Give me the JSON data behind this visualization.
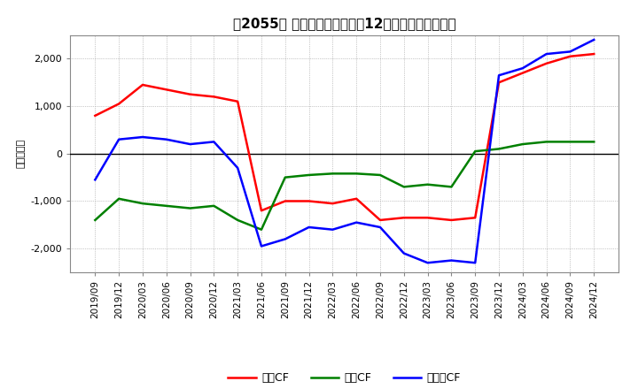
{
  "title": "【2055】 キャッシュフローの12か月移動合計の推移",
  "ylabel": "（百万円）",
  "ylim": [
    -2500,
    2500
  ],
  "yticks": [
    -2000,
    -1000,
    0,
    1000,
    2000
  ],
  "background_color": "#ffffff",
  "dates": [
    "2019/09",
    "2019/12",
    "2020/03",
    "2020/06",
    "2020/09",
    "2020/12",
    "2021/03",
    "2021/06",
    "2021/09",
    "2021/12",
    "2022/03",
    "2022/06",
    "2022/09",
    "2022/12",
    "2023/03",
    "2023/06",
    "2023/09",
    "2023/12",
    "2024/03",
    "2024/06",
    "2024/09",
    "2024/12"
  ],
  "eigyo_cf": [
    800,
    1050,
    1450,
    1350,
    1250,
    1200,
    1100,
    -1200,
    -1000,
    -1000,
    -1050,
    -950,
    -1400,
    -1350,
    -1350,
    -1400,
    -1350,
    1500,
    1700,
    1900,
    2050,
    2100
  ],
  "toshi_cf": [
    -1400,
    -950,
    -1050,
    -1100,
    -1150,
    -1100,
    -1400,
    -1600,
    -500,
    -450,
    -420,
    -420,
    -450,
    -700,
    -650,
    -700,
    50,
    100,
    200,
    250,
    250,
    250
  ],
  "free_cf": [
    -550,
    300,
    350,
    300,
    200,
    250,
    -300,
    -1950,
    -1800,
    -1550,
    -1600,
    -1450,
    -1550,
    -2100,
    -2300,
    -2250,
    -2300,
    1650,
    1800,
    2100,
    2150,
    2400
  ],
  "eigyo_color": "#ff0000",
  "toshi_color": "#008000",
  "free_color": "#0000ff",
  "legend_labels": [
    "営業CF",
    "投資CF",
    "フリーCF"
  ]
}
